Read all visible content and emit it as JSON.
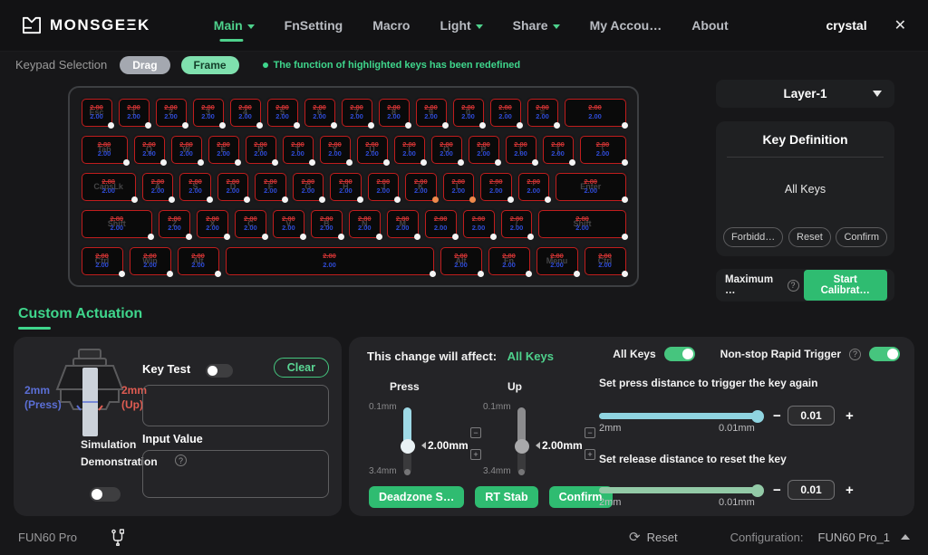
{
  "navbar": {
    "brand": "MONSGEΞK",
    "items": [
      {
        "label": "Main",
        "active": true,
        "arrow": true
      },
      {
        "label": "FnSetting",
        "active": false,
        "arrow": false
      },
      {
        "label": "Macro",
        "active": false,
        "arrow": false
      },
      {
        "label": "Light",
        "active": false,
        "arrow": true
      },
      {
        "label": "Share",
        "active": false,
        "arrow": true
      },
      {
        "label": "My Accou…",
        "active": false,
        "arrow": false
      },
      {
        "label": "About",
        "active": false,
        "arrow": false
      }
    ],
    "user": "crystal",
    "close_glyph": "✕"
  },
  "subheader": {
    "label": "Keypad Selection",
    "drag": "Drag",
    "frame": "Frame",
    "notice": "The function of highlighted keys has been redefined"
  },
  "keyboard": {
    "old_value": "2.80",
    "new_value": "2.00",
    "rows": [
      [
        {
          "label": "Esc",
          "w": 1
        },
        {
          "label": "1",
          "w": 1
        },
        {
          "label": "2",
          "w": 1
        },
        {
          "label": "3",
          "w": 1
        },
        {
          "label": "4",
          "w": 1
        },
        {
          "label": "5",
          "w": 1
        },
        {
          "label": "6",
          "w": 1
        },
        {
          "label": "7",
          "w": 1
        },
        {
          "label": "8",
          "w": 1
        },
        {
          "label": "9",
          "w": 1
        },
        {
          "label": "0",
          "w": 1
        },
        {
          "label": "-",
          "w": 1
        },
        {
          "label": "=",
          "w": 1
        },
        {
          "label": "",
          "w": 2
        }
      ],
      [
        {
          "label": "Tab",
          "w": 1.5
        },
        {
          "label": "Q",
          "w": 1
        },
        {
          "label": "W",
          "w": 1
        },
        {
          "label": "E",
          "w": 1
        },
        {
          "label": "R",
          "w": 1
        },
        {
          "label": "T",
          "w": 1
        },
        {
          "label": "Y",
          "w": 1
        },
        {
          "label": "U",
          "w": 1
        },
        {
          "label": "I",
          "w": 1
        },
        {
          "label": "O",
          "w": 1
        },
        {
          "label": "P",
          "w": 1
        },
        {
          "label": "[",
          "w": 1
        },
        {
          "label": "]",
          "w": 1
        },
        {
          "label": "\\",
          "w": 1.5
        }
      ],
      [
        {
          "label": "CapsLk",
          "w": 1.75
        },
        {
          "label": "A",
          "w": 1
        },
        {
          "label": "S",
          "w": 1
        },
        {
          "label": "D",
          "w": 1
        },
        {
          "label": "F",
          "w": 1
        },
        {
          "label": "G",
          "w": 1
        },
        {
          "label": "H",
          "w": 1
        },
        {
          "label": "J",
          "w": 1
        },
        {
          "label": "K",
          "w": 1,
          "dot": "orange"
        },
        {
          "label": "L",
          "w": 1,
          "dot": "orange"
        },
        {
          "label": ";",
          "w": 1
        },
        {
          "label": "'",
          "w": 1
        },
        {
          "label": "Enter",
          "w": 2.25
        }
      ],
      [
        {
          "label": "Shift",
          "w": 2.25
        },
        {
          "label": "Z",
          "w": 1
        },
        {
          "label": "X",
          "w": 1
        },
        {
          "label": "C",
          "w": 1
        },
        {
          "label": "V",
          "w": 1
        },
        {
          "label": "B",
          "w": 1
        },
        {
          "label": "N",
          "w": 1
        },
        {
          "label": "M",
          "w": 1
        },
        {
          "label": ",",
          "w": 1
        },
        {
          "label": ".",
          "w": 1
        },
        {
          "label": "/",
          "w": 1
        },
        {
          "label": "Shift",
          "w": 2.75
        }
      ],
      [
        {
          "label": "Ctrl",
          "w": 1.25
        },
        {
          "label": "Win",
          "w": 1.25
        },
        {
          "label": "Alt",
          "w": 1.25
        },
        {
          "label": "",
          "w": 6.25
        },
        {
          "label": "Alt",
          "w": 1.25
        },
        {
          "label": "Fn",
          "w": 1.25
        },
        {
          "label": "Menu",
          "w": 1.25
        },
        {
          "label": "Ctrl",
          "w": 1.25
        }
      ]
    ]
  },
  "layer_panel": {
    "value": "Layer-1"
  },
  "key_definition": {
    "title": "Key Definition",
    "selection": "All Keys",
    "buttons": [
      "Forbidd…",
      "Reset",
      "Confirm"
    ]
  },
  "calibration": {
    "label": "Maximum …",
    "button": "Start Calibrat…"
  },
  "section": {
    "title": "Custom Actuation"
  },
  "tester": {
    "press_distance": "2mm",
    "press_caption": "(Press)",
    "up_distance": "2mm",
    "up_caption": "(Up)",
    "sim_label": "Simulation Demonstration",
    "key_test_label": "Key Test",
    "key_test_on": false,
    "sim_on": false,
    "clear": "Clear",
    "key_test_value": "",
    "input_value_label": "Input Value",
    "input_value": ""
  },
  "actuation": {
    "affect_label": "This change will affect:",
    "affect_value": "All Keys",
    "all_keys_toggle": {
      "label": "All Keys",
      "on": true
    },
    "rapid_trigger_toggle": {
      "label": "Non-stop Rapid Trigger",
      "on": true
    },
    "press_slider": {
      "label": "Press",
      "min": "0.1mm",
      "max": "3.4mm",
      "value": "2.00mm"
    },
    "up_slider": {
      "label": "Up",
      "min": "0.1mm",
      "max": "3.4mm",
      "value": "2.00mm"
    },
    "buttons": [
      "Deadzone S…",
      "RT Stab",
      "Confirm"
    ],
    "press_again": {
      "title": "Set press distance to trigger the key again",
      "min": "2mm",
      "max": "0.01mm",
      "value": "0.01"
    },
    "release": {
      "title": "Set release distance to reset the key",
      "min": "2mm",
      "max": "0.01mm",
      "value": "0.01"
    }
  },
  "statusbar": {
    "device": "FUN60 Pro",
    "reset": "Reset",
    "config_label": "Configuration:",
    "config_value": "FUN60 Pro_1"
  },
  "colors": {
    "accent_green": "#3fd68c",
    "button_green": "#2fbc71",
    "key_border_red": "#c01d1d",
    "old_value_red": "#c93232",
    "new_value_blue": "#2e4bd6",
    "slider_teal": "#8fd4e0",
    "slider_release_green": "#93caa7",
    "dot_orange": "#ef8a4c"
  }
}
